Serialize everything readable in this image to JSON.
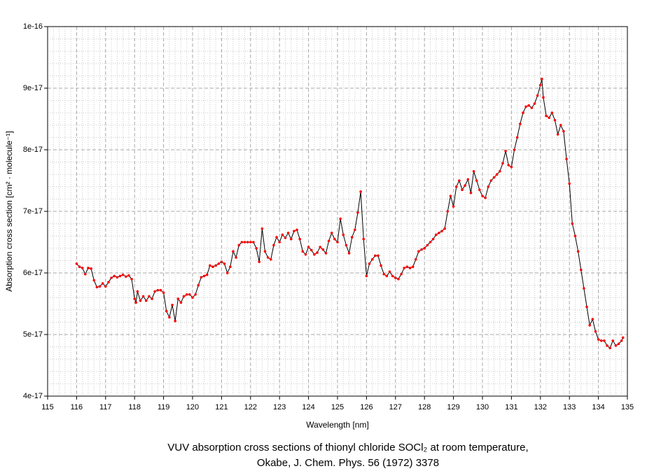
{
  "chart_data": {
    "type": "line",
    "title": "VUV absorption cross sections of thionyl chloride SOCl₂ at room temperature,",
    "subtitle": "Okabe, J. Chem. Phys. 56 (1972) 3378",
    "x_label": "Wavelength [nm]",
    "y_label": "Absorption cross section [cm² · molecule⁻¹]",
    "xlim": [
      115,
      135
    ],
    "ylim": [
      4e-17,
      1e-16
    ],
    "xticks": [
      115,
      116,
      117,
      118,
      119,
      120,
      121,
      122,
      123,
      124,
      125,
      126,
      127,
      128,
      129,
      130,
      131,
      132,
      133,
      134,
      135
    ],
    "yticks": [
      4e-17,
      5e-17,
      6e-17,
      7e-17,
      8e-17,
      9e-17,
      1e-16
    ],
    "grid": true,
    "minor_grid": true,
    "x": [
      116.0,
      116.1,
      116.2,
      116.3,
      116.4,
      116.5,
      116.6,
      116.7,
      116.8,
      116.9,
      117.0,
      117.1,
      117.2,
      117.3,
      117.4,
      117.5,
      117.6,
      117.7,
      117.8,
      117.9,
      118.0,
      118.05,
      118.1,
      118.2,
      118.3,
      118.4,
      118.5,
      118.6,
      118.7,
      118.8,
      118.9,
      119.0,
      119.1,
      119.2,
      119.3,
      119.4,
      119.5,
      119.6,
      119.7,
      119.8,
      119.9,
      120.0,
      120.1,
      120.2,
      120.3,
      120.4,
      120.5,
      120.6,
      120.7,
      120.8,
      120.9,
      121.0,
      121.1,
      121.2,
      121.3,
      121.4,
      121.5,
      121.6,
      121.7,
      121.8,
      121.9,
      122.0,
      122.1,
      122.2,
      122.3,
      122.4,
      122.5,
      122.6,
      122.7,
      122.8,
      122.9,
      123.0,
      123.1,
      123.2,
      123.3,
      123.4,
      123.5,
      123.6,
      123.7,
      123.8,
      123.9,
      124.0,
      124.1,
      124.2,
      124.3,
      124.4,
      124.5,
      124.6,
      124.7,
      124.8,
      124.9,
      125.0,
      125.1,
      125.2,
      125.3,
      125.4,
      125.5,
      125.6,
      125.7,
      125.8,
      125.9,
      126.0,
      126.1,
      126.2,
      126.3,
      126.4,
      126.5,
      126.6,
      126.7,
      126.8,
      126.9,
      127.0,
      127.1,
      127.2,
      127.3,
      127.4,
      127.5,
      127.6,
      127.7,
      127.8,
      127.9,
      128.0,
      128.1,
      128.2,
      128.3,
      128.4,
      128.5,
      128.6,
      128.7,
      128.8,
      128.9,
      129.0,
      129.1,
      129.2,
      129.3,
      129.4,
      129.5,
      129.6,
      129.7,
      129.8,
      129.9,
      130.0,
      130.1,
      130.2,
      130.3,
      130.4,
      130.5,
      130.6,
      130.7,
      130.8,
      130.9,
      131.0,
      131.1,
      131.2,
      131.3,
      131.4,
      131.5,
      131.6,
      131.7,
      131.8,
      131.9,
      132.0,
      132.05,
      132.1,
      132.2,
      132.3,
      132.4,
      132.5,
      132.6,
      132.7,
      132.8,
      132.9,
      133.0,
      133.1,
      133.2,
      133.3,
      133.4,
      133.5,
      133.6,
      133.7,
      133.8,
      133.9,
      134.0,
      134.1,
      134.2,
      134.3,
      134.4,
      134.5,
      134.6,
      134.7,
      134.8,
      134.85
    ],
    "series": [
      {
        "name": "SOCl2",
        "color": "#000000",
        "marker_color": "#ff0000",
        "values": [
          6.15e-17,
          6.1e-17,
          6.08e-17,
          5.98e-17,
          6.08e-17,
          6.07e-17,
          5.88e-17,
          5.77e-17,
          5.78e-17,
          5.83e-17,
          5.78e-17,
          5.85e-17,
          5.92e-17,
          5.95e-17,
          5.93e-17,
          5.95e-17,
          5.97e-17,
          5.94e-17,
          5.96e-17,
          5.9e-17,
          5.58e-17,
          5.52e-17,
          5.7e-17,
          5.55e-17,
          5.62e-17,
          5.55e-17,
          5.62e-17,
          5.58e-17,
          5.7e-17,
          5.72e-17,
          5.72e-17,
          5.68e-17,
          5.38e-17,
          5.28e-17,
          5.48e-17,
          5.22e-17,
          5.58e-17,
          5.52e-17,
          5.62e-17,
          5.65e-17,
          5.65e-17,
          5.6e-17,
          5.65e-17,
          5.8e-17,
          5.93e-17,
          5.95e-17,
          5.97e-17,
          6.12e-17,
          6.1e-17,
          6.12e-17,
          6.15e-17,
          6.18e-17,
          6.15e-17,
          6e-17,
          6.1e-17,
          6.35e-17,
          6.25e-17,
          6.45e-17,
          6.5e-17,
          6.5e-17,
          6.5e-17,
          6.5e-17,
          6.5e-17,
          6.4e-17,
          6.18e-17,
          6.72e-17,
          6.35e-17,
          6.25e-17,
          6.22e-17,
          6.45e-17,
          6.58e-17,
          6.5e-17,
          6.62e-17,
          6.57e-17,
          6.65e-17,
          6.55e-17,
          6.68e-17,
          6.7e-17,
          6.55e-17,
          6.35e-17,
          6.3e-17,
          6.42e-17,
          6.37e-17,
          6.3e-17,
          6.33e-17,
          6.42e-17,
          6.38e-17,
          6.32e-17,
          6.52e-17,
          6.65e-17,
          6.55e-17,
          6.5e-17,
          6.88e-17,
          6.62e-17,
          6.45e-17,
          6.32e-17,
          6.58e-17,
          6.7e-17,
          6.98e-17,
          7.32e-17,
          6.55e-17,
          5.95e-17,
          6.15e-17,
          6.22e-17,
          6.28e-17,
          6.28e-17,
          6.12e-17,
          5.98e-17,
          5.95e-17,
          6.02e-17,
          5.95e-17,
          5.92e-17,
          5.9e-17,
          5.98e-17,
          6.08e-17,
          6.1e-17,
          6.08e-17,
          6.1e-17,
          6.22e-17,
          6.35e-17,
          6.38e-17,
          6.4e-17,
          6.45e-17,
          6.5e-17,
          6.55e-17,
          6.62e-17,
          6.65e-17,
          6.68e-17,
          6.72e-17,
          7e-17,
          7.25e-17,
          7.08e-17,
          7.4e-17,
          7.5e-17,
          7.35e-17,
          7.42e-17,
          7.52e-17,
          7.3e-17,
          7.65e-17,
          7.5e-17,
          7.35e-17,
          7.25e-17,
          7.22e-17,
          7.4e-17,
          7.5e-17,
          7.55e-17,
          7.6e-17,
          7.65e-17,
          7.78e-17,
          7.98e-17,
          7.75e-17,
          7.72e-17,
          8e-17,
          8.2e-17,
          8.42e-17,
          8.6e-17,
          8.7e-17,
          8.72e-17,
          8.68e-17,
          8.75e-17,
          8.88e-17,
          9.05e-17,
          9.15e-17,
          8.85e-17,
          8.55e-17,
          8.52e-17,
          8.6e-17,
          8.48e-17,
          8.25e-17,
          8.4e-17,
          8.3e-17,
          7.85e-17,
          7.45e-17,
          6.8e-17,
          6.6e-17,
          6.35e-17,
          6.05e-17,
          5.75e-17,
          5.45e-17,
          5.15e-17,
          5.25e-17,
          5.05e-17,
          4.92e-17,
          4.9e-17,
          4.9e-17,
          4.82e-17,
          4.78e-17,
          4.9e-17,
          4.82e-17,
          4.85e-17,
          4.9e-17,
          4.95e-17
        ]
      }
    ]
  }
}
